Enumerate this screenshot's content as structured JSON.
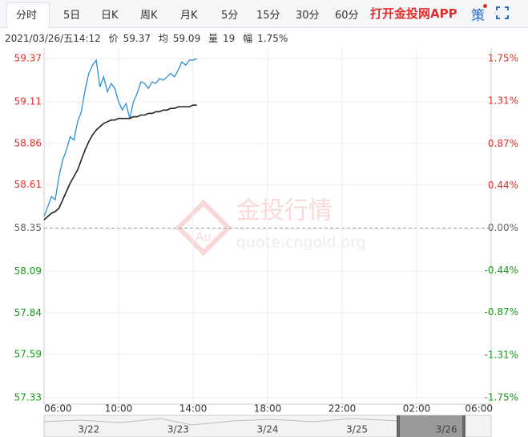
{
  "toolbar": {
    "tabs": [
      "分时",
      "5日",
      "日K",
      "周K",
      "月K",
      "5分",
      "15分",
      "30分",
      "60分"
    ],
    "app_link": "打开金投网APP",
    "strategy": "策"
  },
  "info": {
    "datetime": "2021/03/26/五14:12",
    "items": [
      {
        "label": "价",
        "value": "59.37"
      },
      {
        "label": "均",
        "value": "59.09"
      },
      {
        "label": "量",
        "value": "19"
      },
      {
        "label": "幅",
        "value": "1.75%"
      }
    ]
  },
  "chart_data": {
    "type": "line",
    "x": [
      0,
      0.2,
      0.4,
      0.6,
      0.8,
      1.0,
      1.2,
      1.4,
      1.6,
      1.8,
      2.0,
      2.2,
      2.4,
      2.6,
      2.8,
      3.0,
      3.2,
      3.4,
      3.6,
      3.8,
      4.0,
      4.2,
      4.4,
      4.6,
      4.8,
      5.0,
      5.2,
      5.4,
      5.6,
      5.8,
      6.0,
      6.2,
      6.4,
      6.6,
      6.8,
      7.0,
      7.2,
      7.4,
      7.6,
      7.8,
      8.0,
      8.2
    ],
    "series": [
      {
        "color": "#2b8fd6",
        "values": [
          58.42,
          58.48,
          58.54,
          58.52,
          58.66,
          58.76,
          58.82,
          58.9,
          58.88,
          58.99,
          59.05,
          59.18,
          59.28,
          59.33,
          59.36,
          59.2,
          59.26,
          59.17,
          59.22,
          59.19,
          59.11,
          59.06,
          59.1,
          59.01,
          59.11,
          59.16,
          59.23,
          59.22,
          59.19,
          59.23,
          59.22,
          59.25,
          59.24,
          59.26,
          59.28,
          59.26,
          59.3,
          59.35,
          59.33,
          59.36,
          59.36,
          59.37
        ]
      },
      {
        "color": "#222222",
        "values": [
          58.4,
          58.42,
          58.44,
          58.45,
          58.47,
          58.52,
          58.57,
          58.62,
          58.66,
          58.7,
          58.76,
          58.82,
          58.87,
          58.91,
          58.94,
          58.96,
          58.98,
          58.99,
          59.0,
          59.0,
          59.01,
          59.01,
          59.01,
          59.01,
          59.02,
          59.02,
          59.03,
          59.03,
          59.04,
          59.04,
          59.05,
          59.05,
          59.06,
          59.06,
          59.07,
          59.07,
          59.08,
          59.08,
          59.08,
          59.08,
          59.09,
          59.09
        ]
      }
    ],
    "xlim": [
      0,
      24
    ],
    "xticks": [
      {
        "value": 0,
        "label": "06:00"
      },
      {
        "value": 4,
        "label": "10:00"
      },
      {
        "value": 8,
        "label": "14:00"
      },
      {
        "value": 12,
        "label": "18:00"
      },
      {
        "value": 16,
        "label": "22:00"
      },
      {
        "value": 20,
        "label": "02:00"
      },
      {
        "value": 24,
        "label": "06:00"
      }
    ],
    "ylim": [
      57.33,
      59.37
    ],
    "yticks": [
      59.37,
      59.11,
      58.86,
      58.61,
      58.35,
      58.09,
      57.84,
      57.59,
      57.33
    ],
    "y2lim": [
      -1.75,
      1.75
    ],
    "y2ticks": [
      {
        "value": 1.75,
        "label": "1.75%"
      },
      {
        "value": 1.31,
        "label": "1.31%"
      },
      {
        "value": 0.87,
        "label": "0.87%"
      },
      {
        "value": 0.44,
        "label": "0.44%"
      },
      {
        "value": 0,
        "label": "0.00%"
      },
      {
        "value": -0.44,
        "label": "-0.44%"
      },
      {
        "value": -0.87,
        "label": "-0.87%"
      },
      {
        "value": -1.31,
        "label": "-1.31%"
      },
      {
        "value": -1.75,
        "label": "-1.75%"
      }
    ],
    "baseline": 58.35,
    "up_color": "#e0302c",
    "down_color": "#1a9a1a",
    "flat_color": "#666666",
    "grid": true,
    "watermark": {
      "logo": "Au",
      "name": "金投行情",
      "url": "quote.cngold.org"
    },
    "navigator": {
      "labels": [
        "3/22",
        "3/23",
        "3/24",
        "3/25",
        "3/26"
      ]
    }
  }
}
